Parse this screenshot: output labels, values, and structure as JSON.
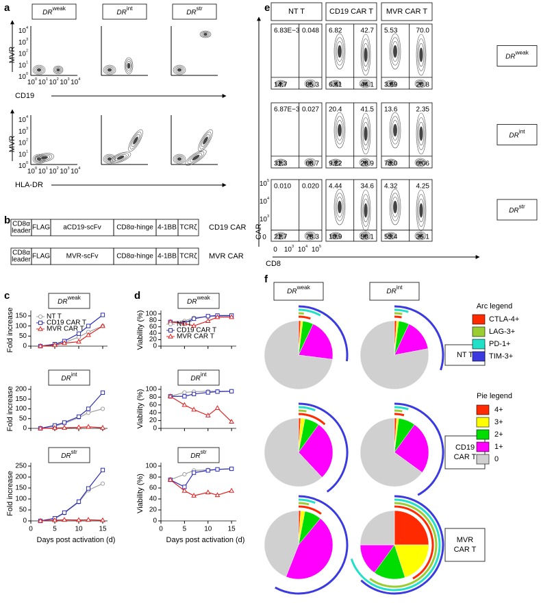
{
  "panel_labels": [
    "a",
    "b",
    "c",
    "d",
    "e",
    "f"
  ],
  "flow_a": {
    "headers": [
      {
        "base": "DR",
        "sup": "weak"
      },
      {
        "base": "DR",
        "sup": "int"
      },
      {
        "base": "DR",
        "sup": "str"
      }
    ],
    "rows": [
      {
        "y_label": "MVR",
        "x_label": "CD19"
      },
      {
        "y_label": "MVR",
        "x_label": "HLA-DR"
      }
    ],
    "ticks": [
      {
        "base": "10",
        "exp": "0"
      },
      {
        "base": "10",
        "exp": "1"
      },
      {
        "base": "10",
        "exp": "2"
      },
      {
        "base": "10",
        "exp": "3"
      },
      {
        "base": "10",
        "exp": "4"
      }
    ]
  },
  "constructs": [
    {
      "parts": [
        [
          "CD8α",
          "leader"
        ],
        "FLAG",
        "aCD19-scFv",
        "CD8α-hinge",
        "4-1BB",
        "TCRζ"
      ],
      "name": "CD19 CAR"
    },
    {
      "parts": [
        [
          "CD8α",
          "leader"
        ],
        "FLAG",
        "MVR-scFv",
        "CD8α-hinge",
        "4-1BB",
        "TCRζ"
      ],
      "name": "MVR CAR"
    }
  ],
  "flow_e": {
    "columns": [
      "NT T",
      "CD19 CAR T",
      "MVR CAR T"
    ],
    "rows": [
      {
        "base": "DR",
        "sup": "weak"
      },
      {
        "base": "DR",
        "sup": "int"
      },
      {
        "base": "DR",
        "sup": "str"
      }
    ],
    "quadrants": [
      [
        [
          "6.83E−3",
          "0.048",
          "14.7",
          "85.3"
        ],
        [
          "6.82",
          "42.7",
          "6.41",
          "44.1"
        ],
        [
          "5.53",
          "70.0",
          "3.69",
          "20.8"
        ]
      ],
      [
        [
          "6.87E−3",
          "0.027",
          "31.3",
          "68.7"
        ],
        [
          "20.4",
          "41.5",
          "9.22",
          "28.9"
        ],
        [
          "13.6",
          "2.35",
          "78.0",
          "6.06"
        ]
      ],
      [
        [
          "0.010",
          "0.020",
          "21.7",
          "78.3"
        ],
        [
          "4.44",
          "34.6",
          "10.9",
          "50.1"
        ],
        [
          "4.32",
          "4.25",
          "55.4",
          "36.1"
        ]
      ]
    ],
    "y_label": "CAR",
    "x_label": "CD8",
    "ticks": [
      {
        "base": "0"
      },
      {
        "base": "10",
        "exp": "3"
      },
      {
        "base": "10",
        "exp": "4"
      },
      {
        "base": "10",
        "exp": "5"
      }
    ]
  },
  "f_panel": {
    "columns": [
      {
        "base": "DR",
        "sup": "weak"
      },
      {
        "base": "DR",
        "sup": "int"
      }
    ],
    "rows": [
      [
        "NT T"
      ],
      [
        "CD19",
        "CAR T"
      ],
      [
        "MVR",
        "CAR T"
      ]
    ],
    "arc_legend_title": "Arc legend",
    "arc_series": [
      {
        "name": "CTLA-4+",
        "color": "#ff2a00"
      },
      {
        "name": "LAG-3+",
        "color": "#9acd32"
      },
      {
        "name": "PD-1+",
        "color": "#20e0c8"
      },
      {
        "name": "TIM-3+",
        "color": "#3a3ae0"
      }
    ],
    "pie_legend_title": "Pie legend",
    "pie_categories": [
      "4+",
      "3+",
      "2+",
      "1+",
      "0"
    ],
    "pie_colors": [
      "#ff2a00",
      "#ffff00",
      "#00dd00",
      "#ff00ff",
      "#d0d0d0"
    ]
  },
  "chart_data": [
    {
      "type": "line",
      "title": {
        "base": "DR",
        "sup": "weak"
      },
      "y_label": "Fold increase",
      "x": [
        2,
        5,
        7,
        10,
        12,
        15
      ],
      "xlim": [
        0,
        16
      ],
      "xticks": [
        0,
        5,
        10,
        15
      ],
      "ylim": [
        0,
        160
      ],
      "yticks": [
        0,
        50,
        100,
        150
      ],
      "legend": "upper left",
      "series": [
        {
          "name": "NT T",
          "color": "#a0a0a0",
          "marker": "circle",
          "values": [
            0,
            8,
            18,
            45,
            70,
            100
          ]
        },
        {
          "name": "CD19 CAR T",
          "color": "#2a2ab8",
          "marker": "square",
          "values": [
            0,
            10,
            25,
            62,
            100,
            155
          ]
        },
        {
          "name": "MVR CAR T",
          "color": "#e02020",
          "marker": "triangle",
          "values": [
            0,
            5,
            15,
            22,
            55,
            100
          ]
        }
      ]
    },
    {
      "type": "line",
      "title": {
        "base": "DR",
        "sup": "int"
      },
      "y_label": "Fold increase",
      "x": [
        2,
        5,
        7,
        10,
        12,
        15
      ],
      "xlim": [
        0,
        16
      ],
      "xticks": [
        0,
        5,
        10,
        15
      ],
      "ylim": [
        0,
        200
      ],
      "yticks": [
        0,
        50,
        100,
        150,
        200
      ],
      "series": [
        {
          "color": "#a0a0a0",
          "marker": "circle",
          "values": [
            0,
            12,
            25,
            55,
            80,
            100
          ]
        },
        {
          "color": "#2a2ab8",
          "marker": "square",
          "values": [
            0,
            15,
            30,
            60,
            100,
            183
          ]
        },
        {
          "color": "#e02020",
          "marker": "triangle",
          "values": [
            0,
            2,
            3,
            5,
            8,
            3
          ]
        }
      ]
    },
    {
      "type": "line",
      "title": {
        "base": "DR",
        "sup": "str"
      },
      "y_label": "Fold increase",
      "x_label": "Days post activation (d)",
      "x": [
        2,
        5,
        7,
        10,
        12,
        15
      ],
      "xlim": [
        0,
        16
      ],
      "xticks": [
        0,
        5,
        10,
        15
      ],
      "ylim": [
        0,
        250
      ],
      "yticks": [
        0,
        50,
        100,
        150,
        200,
        250
      ],
      "series": [
        {
          "color": "#a0a0a0",
          "marker": "circle",
          "values": [
            0,
            10,
            35,
            85,
            140,
            170
          ]
        },
        {
          "color": "#2a2ab8",
          "marker": "square",
          "values": [
            0,
            12,
            38,
            88,
            148,
            232
          ]
        },
        {
          "color": "#e02020",
          "marker": "triangle",
          "values": [
            0,
            3,
            5,
            4,
            5,
            3
          ]
        }
      ]
    },
    {
      "type": "line",
      "title": {
        "base": "DR",
        "sup": "weak"
      },
      "y_label": "Viability (%)",
      "x": [
        2,
        5,
        7,
        10,
        12,
        15
      ],
      "xlim": [
        0,
        16
      ],
      "xticks": [
        0,
        5,
        10,
        15
      ],
      "ylim": [
        0,
        100
      ],
      "yticks": [
        0,
        20,
        40,
        60,
        80,
        100
      ],
      "legend": "lower left",
      "series": [
        {
          "name": "NT T",
          "color": "#a0a0a0",
          "marker": "circle",
          "values": [
            75,
            78,
            88,
            92,
            93,
            93
          ]
        },
        {
          "name": "CD19 CAR T",
          "color": "#2a2ab8",
          "marker": "square",
          "values": [
            75,
            72,
            85,
            93,
            95,
            95
          ]
        },
        {
          "name": "MVR CAR T",
          "color": "#e02020",
          "marker": "triangle",
          "values": [
            75,
            70,
            63,
            78,
            90,
            90
          ]
        }
      ]
    },
    {
      "type": "line",
      "title": {
        "base": "DR",
        "sup": "int"
      },
      "y_label": "Viability (%)",
      "x": [
        2,
        5,
        7,
        10,
        12,
        15
      ],
      "xlim": [
        0,
        16
      ],
      "xticks": [
        0,
        5,
        10,
        15
      ],
      "ylim": [
        0,
        100
      ],
      "yticks": [
        0,
        20,
        40,
        60,
        80,
        100
      ],
      "series": [
        {
          "color": "#a0a0a0",
          "marker": "circle",
          "values": [
            82,
            92,
            94,
            95,
            95,
            95
          ]
        },
        {
          "color": "#2a2ab8",
          "marker": "square",
          "values": [
            82,
            82,
            88,
            92,
            94,
            95
          ]
        },
        {
          "color": "#e02020",
          "marker": "triangle",
          "values": [
            82,
            60,
            48,
            33,
            52,
            17
          ]
        }
      ]
    },
    {
      "type": "line",
      "title": {
        "base": "DR",
        "sup": "str"
      },
      "y_label": "Viability (%)",
      "x_label": "Days post activation (d)",
      "x": [
        2,
        5,
        7,
        10,
        12,
        15
      ],
      "xlim": [
        0,
        16
      ],
      "xticks": [
        0,
        5,
        10,
        15
      ],
      "ylim": [
        0,
        100
      ],
      "yticks": [
        0,
        20,
        40,
        60,
        80,
        100
      ],
      "series": [
        {
          "color": "#a0a0a0",
          "marker": "circle",
          "values": [
            75,
            85,
            92,
            93,
            94,
            95
          ]
        },
        {
          "color": "#2a2ab8",
          "marker": "square",
          "values": [
            75,
            62,
            88,
            92,
            94,
            95
          ]
        },
        {
          "color": "#e02020",
          "marker": "triangle",
          "values": [
            75,
            55,
            46,
            52,
            47,
            55
          ]
        }
      ]
    },
    {
      "type": "pie",
      "values": [
        1,
        1,
        5,
        20,
        73
      ],
      "arc_values": [
        5,
        2,
        8,
        27
      ]
    },
    {
      "type": "pie",
      "values": [
        1,
        1,
        5,
        15,
        78
      ],
      "arc_values": [
        3,
        3,
        5,
        30
      ]
    },
    {
      "type": "pie",
      "values": [
        1,
        2,
        7,
        28,
        62
      ],
      "arc_values": [
        12,
        3,
        6,
        40
      ]
    },
    {
      "type": "pie",
      "values": [
        1,
        1,
        8,
        25,
        65
      ],
      "arc_values": [
        4,
        3,
        5,
        42
      ]
    },
    {
      "type": "pie",
      "values": [
        1,
        2,
        8,
        45,
        44
      ],
      "arc_values": [
        10,
        4,
        6,
        58
      ]
    },
    {
      "type": "pie",
      "values": [
        25,
        20,
        15,
        15,
        25
      ],
      "arc_values": [
        42,
        60,
        70,
        62
      ]
    }
  ]
}
